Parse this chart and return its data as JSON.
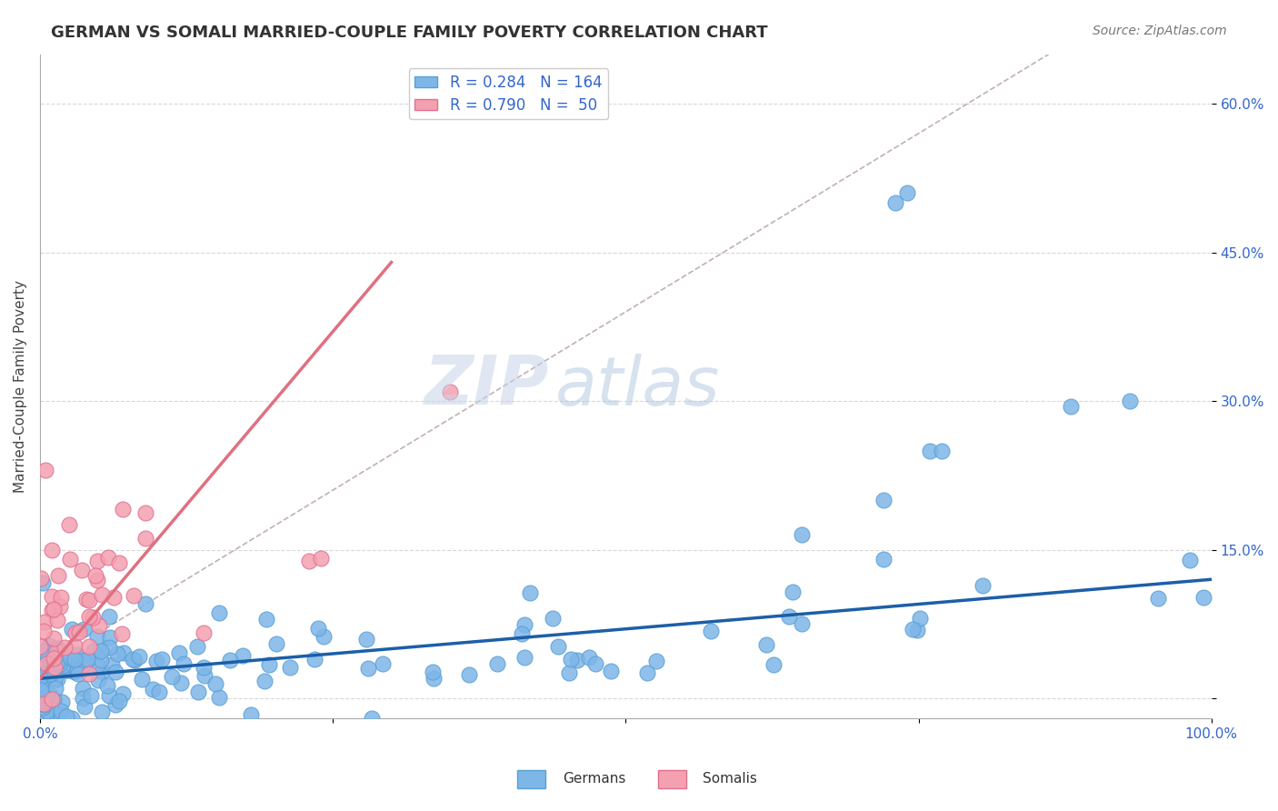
{
  "title": "GERMAN VS SOMALI MARRIED-COUPLE FAMILY POVERTY CORRELATION CHART",
  "source": "Source: ZipAtlas.com",
  "ylabel": "Married-Couple Family Poverty",
  "xlim": [
    0,
    1.0
  ],
  "ylim": [
    -0.02,
    0.65
  ],
  "ytick_positions": [
    0.0,
    0.15,
    0.3,
    0.45,
    0.6
  ],
  "ytick_labels": [
    "",
    "15.0%",
    "30.0%",
    "45.0%",
    "60.0%"
  ],
  "german_color": "#7EB6E8",
  "german_edge_color": "#5A9FD4",
  "somali_color": "#F4A0B0",
  "somali_edge_color": "#E07090",
  "german_line_color": "#1B5FA8",
  "somali_line_color": "#E07080",
  "dashed_line_color": "#C0B0B8",
  "legend_german_label": "R = 0.284   N = 164",
  "legend_somali_label": "R = 0.790   N =  50",
  "watermark_zip": "ZIP",
  "watermark_atlas": "atlas",
  "grid_color": "#D8D8D8",
  "german_N": 164,
  "somali_N": 50
}
